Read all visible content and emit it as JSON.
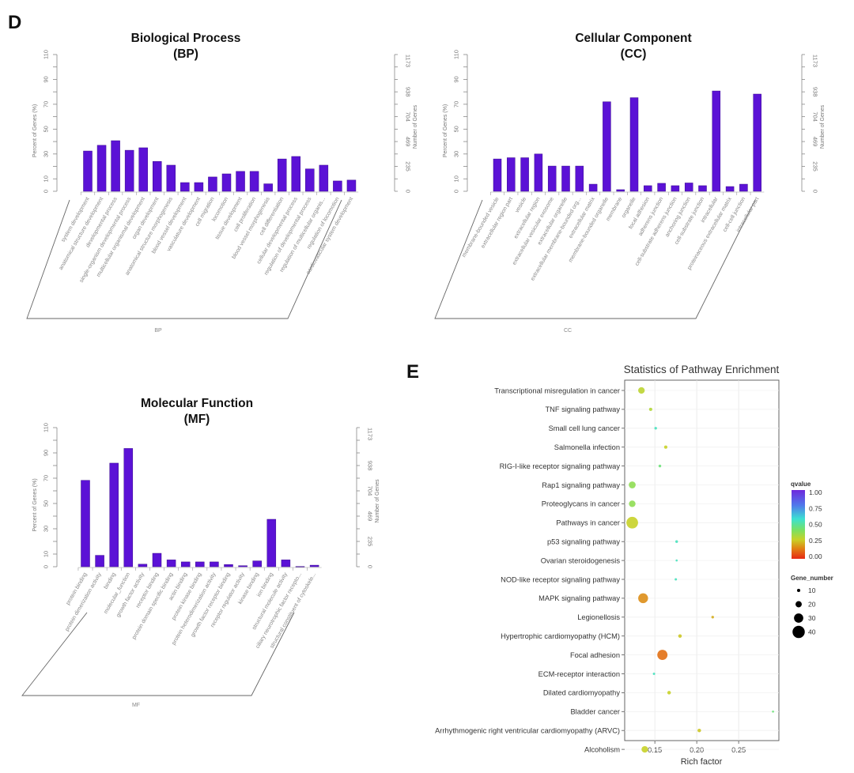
{
  "figure": {
    "panel_d_label": "D",
    "panel_e_label": "E"
  },
  "chart_data": [
    {
      "id": "bp",
      "type": "bar",
      "title": "Biological Process",
      "subtitle": "(BP)",
      "xlabel": "BP",
      "ylabel": "Percent of Genes (%)",
      "ylabel_right": "Number of Genes",
      "ylim": [
        0,
        110
      ],
      "yticks": [
        0,
        10,
        30,
        50,
        70,
        90,
        110
      ],
      "right_ticks": [
        "0",
        "235",
        "469",
        "704",
        "938",
        "1173"
      ],
      "bar_color": "#5b12d6",
      "categories": [
        "system development",
        "anatomical structure development",
        "developmental process",
        "single-organism developmental process",
        "multicellular organismal development",
        "organ development",
        "anatomical structure morphogenesis",
        "blood vessel development",
        "vasculature development",
        "cell migration",
        "locomotion",
        "tissue development",
        "cell proliferation",
        "blood vessel morphogenesis",
        "cell differentiation",
        "cellular developmental process",
        "regulation of developmental process",
        "regulation of multicellular organis...",
        "regulation of locomotion",
        "cardiovascular system development"
      ],
      "values": [
        32.4,
        37,
        40.7,
        33,
        35,
        24,
        21,
        7,
        7,
        11.5,
        14,
        16,
        16,
        6,
        26,
        28,
        18,
        21,
        8.3,
        9
      ]
    },
    {
      "id": "cc",
      "type": "bar",
      "title": "Cellular Component",
      "subtitle": "(CC)",
      "xlabel": "CC",
      "ylabel": "Percent of Genes (%)",
      "ylabel_right": "Number of Genes",
      "ylim": [
        0,
        110
      ],
      "yticks": [
        0,
        10,
        30,
        50,
        70,
        90,
        110
      ],
      "right_ticks": [
        "0",
        "235",
        "469",
        "704",
        "938",
        "1173"
      ],
      "bar_color": "#5b12d6",
      "categories": [
        "membrane-bounded vesicle",
        "extracellular region part",
        "vesicle",
        "extracellular region",
        "extracellular vesicular exosome",
        "extracellular organelle",
        "extracellular membrane-bounded org...",
        "extracellular matrix",
        "membrane-bounded organelle",
        "membrane",
        "organelle",
        "focal adhesion",
        "adherens junction",
        "cell-substrate adherens junction",
        "anchoring junction",
        "cell-substrate junction",
        "intracellular",
        "proteinaceous extracellular matrix",
        "cell-cell junction",
        "intracellular part"
      ],
      "values": [
        26,
        27,
        27,
        30,
        20.3,
        20.3,
        20.3,
        5.7,
        72,
        1.3,
        75.3,
        4.5,
        6.4,
        4.5,
        6.7,
        4.5,
        80.7,
        3.8,
        5.7,
        78.2
      ]
    },
    {
      "id": "mf",
      "type": "bar",
      "title": "Molecular Function",
      "subtitle": "(MF)",
      "xlabel": "MF",
      "ylabel": "Percent of Genes (%)",
      "ylabel_right": "Number of Genes",
      "ylim": [
        0,
        110
      ],
      "yticks": [
        0,
        10,
        30,
        50,
        70,
        90,
        110
      ],
      "right_ticks": [
        "0",
        "235",
        "469",
        "704",
        "938",
        "1173"
      ],
      "bar_color": "#5b12d6",
      "categories": [
        "protein binding",
        "protein dimerization activity",
        "binding",
        "molecular_function",
        "growth factor activity",
        "receptor binding",
        "protein domain specific binding",
        "actin binding",
        "protein kinase binding",
        "protein heterodimerization activity",
        "growth factor receptor binding",
        "receptor regulator activity",
        "kinase binding",
        "ion binding",
        "structural molecule activity",
        "ciliary neurotrophic factor recepto...",
        "structural constituent of cytoskele..."
      ],
      "values": [
        68.3,
        9,
        81.9,
        93.5,
        2,
        10.6,
        5.4,
        3.8,
        3.8,
        3.8,
        1.7,
        0.8,
        4.6,
        37.5,
        5.4,
        0.2,
        1.2
      ]
    },
    {
      "id": "pathway",
      "type": "scatter",
      "title": "Statistics of Pathway Enrichment",
      "xlabel": "Rich factor",
      "ylabel": "",
      "xlim": [
        0.114,
        0.298
      ],
      "xticks": [
        0.15,
        0.2,
        0.25
      ],
      "xtick_labels": [
        "0.15",
        "0.20",
        "0.25"
      ],
      "grid": true,
      "legend_position": "right",
      "color_legend": {
        "title": "qvalue",
        "ticks": [
          "1.00",
          "0.75",
          "0.50",
          "0.25",
          "0.00"
        ],
        "range": [
          0,
          1
        ]
      },
      "size_legend": {
        "title": "Gene_number",
        "values": [
          10,
          20,
          30,
          40
        ]
      },
      "points": [
        {
          "pathway": "Transcriptional misregulation in cancer",
          "rich_factor": 0.134,
          "qvalue": 0.3,
          "gene_number": 21
        },
        {
          "pathway": "TNF signaling pathway",
          "rich_factor": 0.145,
          "qvalue": 0.32,
          "gene_number": 10
        },
        {
          "pathway": "Small cell lung cancer",
          "rich_factor": 0.151,
          "qvalue": 0.55,
          "gene_number": 8
        },
        {
          "pathway": "Salmonella infection",
          "rich_factor": 0.163,
          "qvalue": 0.28,
          "gene_number": 10
        },
        {
          "pathway": "RIG-I-like receptor signaling pathway",
          "rich_factor": 0.156,
          "qvalue": 0.45,
          "gene_number": 8
        },
        {
          "pathway": "Rap1 signaling pathway",
          "rich_factor": 0.123,
          "qvalue": 0.38,
          "gene_number": 22
        },
        {
          "pathway": "Proteoglycans in cancer",
          "rich_factor": 0.123,
          "qvalue": 0.38,
          "gene_number": 21
        },
        {
          "pathway": "Pathways in cancer",
          "rich_factor": 0.123,
          "qvalue": 0.28,
          "gene_number": 38
        },
        {
          "pathway": "p53 signaling pathway",
          "rich_factor": 0.176,
          "qvalue": 0.55,
          "gene_number": 8
        },
        {
          "pathway": "Ovarian steroidogenesis",
          "rich_factor": 0.176,
          "qvalue": 0.55,
          "gene_number": 6
        },
        {
          "pathway": "NOD-like receptor signaling pathway",
          "rich_factor": 0.175,
          "qvalue": 0.55,
          "gene_number": 7
        },
        {
          "pathway": "MAPK signaling pathway",
          "rich_factor": 0.136,
          "qvalue": 0.17,
          "gene_number": 32
        },
        {
          "pathway": "Legionellosis",
          "rich_factor": 0.219,
          "qvalue": 0.22,
          "gene_number": 8
        },
        {
          "pathway": "Hypertrophic cardiomyopathy (HCM)",
          "rich_factor": 0.18,
          "qvalue": 0.26,
          "gene_number": 11
        },
        {
          "pathway": "Focal adhesion",
          "rich_factor": 0.159,
          "qvalue": 0.12,
          "gene_number": 33
        },
        {
          "pathway": "ECM-receptor interaction",
          "rich_factor": 0.149,
          "qvalue": 0.55,
          "gene_number": 7
        },
        {
          "pathway": "Dilated cardiomyopathy",
          "rich_factor": 0.167,
          "qvalue": 0.28,
          "gene_number": 11
        },
        {
          "pathway": "Bladder cancer",
          "rich_factor": 0.291,
          "qvalue": 0.45,
          "gene_number": 6
        },
        {
          "pathway": "Arrhythmogenic right ventricular cardiomyopathy (ARVC)",
          "rich_factor": 0.203,
          "qvalue": 0.26,
          "gene_number": 11
        },
        {
          "pathway": "Alcoholism",
          "rich_factor": 0.138,
          "qvalue": 0.28,
          "gene_number": 21
        }
      ]
    }
  ]
}
